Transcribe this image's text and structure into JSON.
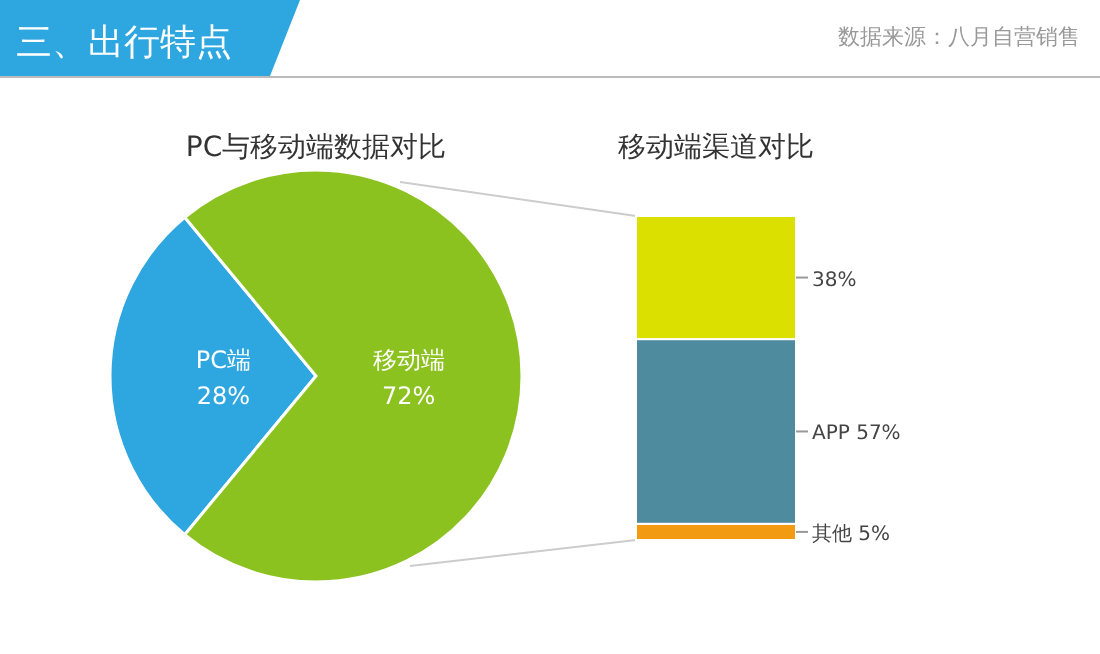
{
  "chart_data": [
    {
      "type": "pie",
      "title": "PC与移动端数据对比",
      "categories": [
        "PC端",
        "移动端"
      ],
      "values": [
        28,
        72
      ],
      "colors": [
        "#2ea6e0",
        "#8cc21f"
      ],
      "value_labels": [
        "28%",
        "72%"
      ],
      "annotations": [
        "三、出行特点",
        "数据来源：八月自营销售"
      ]
    },
    {
      "type": "bar",
      "title": "移动端渠道对比",
      "stacked": true,
      "categories": [
        null
      ],
      "series": [
        {
          "color": "#f39a13",
          "values": [
            5
          ],
          "value_labels": [
            "其他 5%"
          ]
        },
        {
          "color": "#4f8b9e",
          "values": [
            57
          ],
          "value_labels": [
            "APP 57%"
          ]
        },
        {
          "color": "#dce000",
          "values": [
            38
          ],
          "value_labels": [
            "38%"
          ]
        }
      ]
    }
  ]
}
